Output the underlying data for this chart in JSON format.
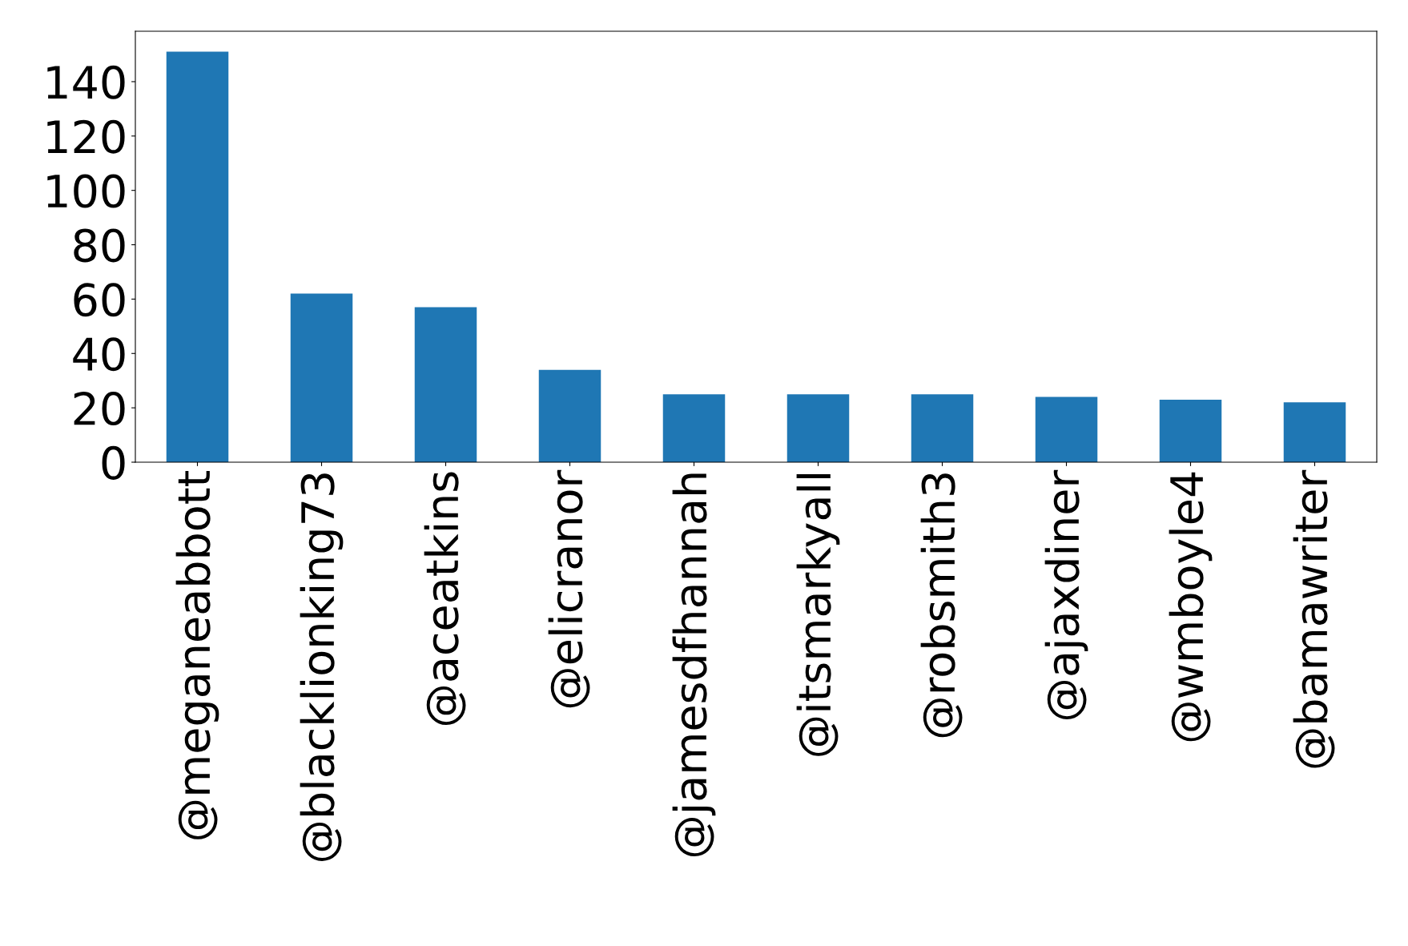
{
  "chart_data": {
    "type": "bar",
    "categories": [
      "@meganeabbott",
      "@blacklionking73",
      "@aceatkins",
      "@elicranor",
      "@jamesdfhannah",
      "@itsmarkyall",
      "@robsmith3",
      "@ajaxdiner",
      "@wmboyle4",
      "@bamawriter"
    ],
    "values": [
      151,
      62,
      57,
      34,
      25,
      25,
      25,
      24,
      23,
      22
    ],
    "color": "#1f77b4",
    "ylim": [
      0,
      158.55
    ],
    "yticks": [
      0,
      20,
      40,
      60,
      80,
      100,
      120,
      140
    ],
    "grid": false,
    "legend": false
  }
}
